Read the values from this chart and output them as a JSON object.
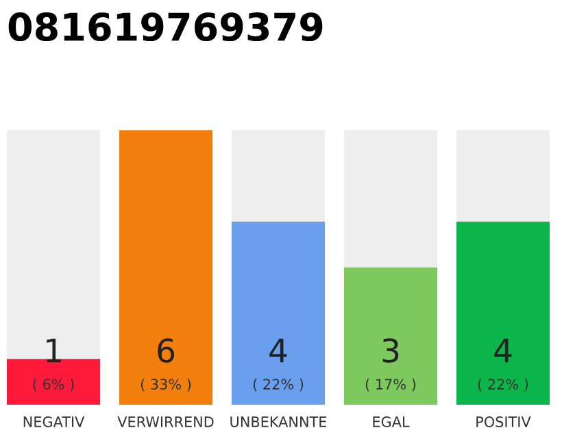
{
  "chart_data": {
    "type": "bar",
    "title": "081619769379",
    "categories": [
      "NEGATIV",
      "VERWIRREND",
      "UNBEKANNTE",
      "EGAL",
      "POSITIV"
    ],
    "values": [
      1,
      6,
      4,
      3,
      4
    ],
    "colors": [
      "#ff1a3c",
      "#f27f0c",
      "#6a9fee",
      "#7dc95e",
      "#0bb54a"
    ],
    "value_labels": [
      "1\n( 6% )",
      "6\n( 33% )",
      "4\n( 22% )",
      "3\n( 17% )",
      "4\n( 22% )"
    ],
    "ylim": [
      0,
      6
    ],
    "grid": false,
    "legend": false
  }
}
